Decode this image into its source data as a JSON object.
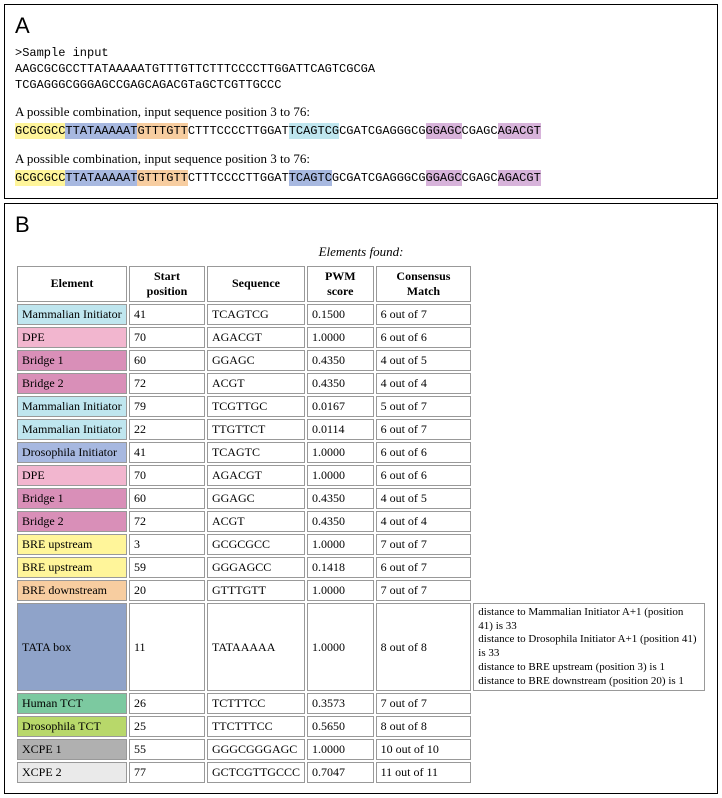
{
  "panelA": {
    "label": "A",
    "sample_header": ">Sample input",
    "seq_line1": "AAGCGCGCCTTATAAAAATGTTTGTTCTTTCCCCTTGGATTCAGTCGCGA",
    "seq_line2": "TCGAGGGCGGGAGCCGAGCAGACGTaGCTCGTTGCCC",
    "combo_note": "A possible combination, input sequence position 3 to 76:",
    "combo1_segments": [
      {
        "text": "GCGCGCC",
        "bg": "#fff59a"
      },
      {
        "text": "TTATAAAAAT",
        "bg": "#a7b8e0"
      },
      {
        "text": "GTTTGTT",
        "bg": "#f7cda0"
      },
      {
        "text": "CTTTCCCCTTGGAT",
        "bg": null
      },
      {
        "text": "TCAGTCG",
        "bg": "#bfe6ef"
      },
      {
        "text": "CGATCGAGGGCG",
        "bg": null
      },
      {
        "text": "GGAGC",
        "bg": "#d7b3da"
      },
      {
        "text": "CGAGC",
        "bg": null
      },
      {
        "text": "AGACGT",
        "bg": "#d7b3da"
      }
    ],
    "combo2_segments": [
      {
        "text": "GCGCGCC",
        "bg": "#fff59a"
      },
      {
        "text": "TTATAAAAAT",
        "bg": "#a7b8e0"
      },
      {
        "text": "GTTTGTT",
        "bg": "#f7cda0"
      },
      {
        "text": "CTTTCCCCTTGGAT",
        "bg": null
      },
      {
        "text": "TCAGTC",
        "bg": "#a7b8e0"
      },
      {
        "text": "GCGATCGAGGGCG",
        "bg": null
      },
      {
        "text": "GGAGC",
        "bg": "#d7b3da"
      },
      {
        "text": "CGAGC",
        "bg": null
      },
      {
        "text": "AGACGT",
        "bg": "#d7b3da"
      }
    ]
  },
  "panelB": {
    "label": "B",
    "table_title": "Elements found:",
    "columns": [
      "Element",
      "Start position",
      "Sequence",
      "PWM score",
      "Consensus Match"
    ],
    "element_colors": {
      "Mammalian Initiator": "#bfe6ef",
      "DPE": "#f2b6cf",
      "Bridge 1": "#d98fb8",
      "Bridge 2": "#d98fb8",
      "Drosophila Initiator": "#a7b8e0",
      "BRE upstream": "#fff59a",
      "BRE downstream": "#f7cda0",
      "TATA box": "#8fa3c9",
      "Human TCT": "#7cc9a0",
      "Drosophila TCT": "#b8d86a",
      "XCPE 1": "#b0b0b0",
      "XCPE 2": "#eaeaea"
    },
    "rows": [
      {
        "element": "Mammalian Initiator",
        "start": "41",
        "seq": "TCAGTCG",
        "pwm": "0.1500",
        "consensus": "6 out of 7",
        "notes": ""
      },
      {
        "element": "DPE",
        "start": "70",
        "seq": "AGACGT",
        "pwm": "1.0000",
        "consensus": "6 out of 6",
        "notes": ""
      },
      {
        "element": "Bridge 1",
        "start": "60",
        "seq": "GGAGC",
        "pwm": "0.4350",
        "consensus": "4 out of 5",
        "notes": ""
      },
      {
        "element": "Bridge 2",
        "start": "72",
        "seq": "ACGT",
        "pwm": "0.4350",
        "consensus": "4 out of 4",
        "notes": ""
      },
      {
        "element": "Mammalian Initiator",
        "start": "79",
        "seq": "TCGTTGC",
        "pwm": "0.0167",
        "consensus": "5 out of 7",
        "notes": ""
      },
      {
        "element": "Mammalian Initiator",
        "start": "22",
        "seq": "TTGTTCT",
        "pwm": "0.0114",
        "consensus": "6 out of 7",
        "notes": ""
      },
      {
        "element": "Drosophila Initiator",
        "start": "41",
        "seq": "TCAGTC",
        "pwm": "1.0000",
        "consensus": "6 out of 6",
        "notes": ""
      },
      {
        "element": "DPE",
        "start": "70",
        "seq": "AGACGT",
        "pwm": "1.0000",
        "consensus": "6 out of 6",
        "notes": ""
      },
      {
        "element": "Bridge 1",
        "start": "60",
        "seq": "GGAGC",
        "pwm": "0.4350",
        "consensus": "4 out of 5",
        "notes": ""
      },
      {
        "element": "Bridge 2",
        "start": "72",
        "seq": "ACGT",
        "pwm": "0.4350",
        "consensus": "4 out of 4",
        "notes": ""
      },
      {
        "element": "BRE upstream",
        "start": "3",
        "seq": "GCGCGCC",
        "pwm": "1.0000",
        "consensus": "7 out of 7",
        "notes": ""
      },
      {
        "element": "BRE upstream",
        "start": "59",
        "seq": "GGGAGCC",
        "pwm": "0.1418",
        "consensus": "6 out of 7",
        "notes": ""
      },
      {
        "element": "BRE downstream",
        "start": "20",
        "seq": "GTTTGTT",
        "pwm": "1.0000",
        "consensus": "7 out of 7",
        "notes": ""
      },
      {
        "element": "TATA box",
        "start": "11",
        "seq": "TATAAAAA",
        "pwm": "1.0000",
        "consensus": "8 out of 8",
        "notes": "distance to Mammalian Initiator A+1 (position 41) is 33\ndistance to Drosophila Initiator A+1 (position 41) is 33\ndistance to BRE upstream (position 3) is 1\ndistance to BRE downstream (position 20) is 1"
      },
      {
        "element": "Human TCT",
        "start": "26",
        "seq": "TCTTTCC",
        "pwm": "0.3573",
        "consensus": "7 out of 7",
        "notes": ""
      },
      {
        "element": "Drosophila TCT",
        "start": "25",
        "seq": "TTCTTTCC",
        "pwm": "0.5650",
        "consensus": "8 out of 8",
        "notes": ""
      },
      {
        "element": "XCPE 1",
        "start": "55",
        "seq": "GGGCGGGAGC",
        "pwm": "1.0000",
        "consensus": "10 out of 10",
        "notes": ""
      },
      {
        "element": "XCPE 2",
        "start": "77",
        "seq": "GCTCGTTGCCC",
        "pwm": "0.7047",
        "consensus": "11 out of 11",
        "notes": ""
      }
    ]
  }
}
